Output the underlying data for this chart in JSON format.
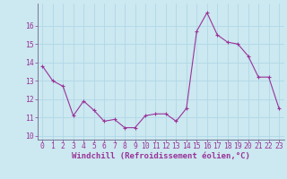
{
  "x": [
    0,
    1,
    2,
    3,
    4,
    5,
    6,
    7,
    8,
    9,
    10,
    11,
    12,
    13,
    14,
    15,
    16,
    17,
    18,
    19,
    20,
    21,
    22,
    23
  ],
  "y": [
    13.8,
    13.0,
    12.7,
    11.1,
    11.9,
    11.4,
    10.8,
    10.9,
    10.45,
    10.45,
    11.1,
    11.2,
    11.2,
    10.8,
    11.5,
    15.7,
    16.7,
    15.5,
    15.1,
    15.0,
    14.35,
    13.2,
    13.2,
    11.5
  ],
  "line_color": "#993399",
  "marker": "+",
  "marker_size": 3,
  "marker_linewidth": 0.8,
  "linewidth": 0.8,
  "bg_color": "#cce8f0",
  "grid_color": "#b0d8e8",
  "xlabel": "Windchill (Refroidissement éolien,°C)",
  "ylim": [
    9.8,
    17.2
  ],
  "xlim": [
    -0.5,
    23.5
  ],
  "yticks": [
    10,
    11,
    12,
    13,
    14,
    15,
    16
  ],
  "xticks": [
    0,
    1,
    2,
    3,
    4,
    5,
    6,
    7,
    8,
    9,
    10,
    11,
    12,
    13,
    14,
    15,
    16,
    17,
    18,
    19,
    20,
    21,
    22,
    23
  ],
  "tick_label_color": "#993399",
  "label_fontsize": 6.5,
  "tick_fontsize": 5.8,
  "axis_color": "#993399",
  "spine_color": "#666688"
}
